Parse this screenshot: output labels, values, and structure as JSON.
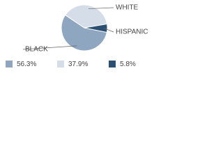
{
  "chart_data": {
    "type": "pie",
    "categories": [
      "BLACK",
      "WHITE",
      "HISPANIC"
    ],
    "values": [
      56.3,
      37.9,
      5.8
    ],
    "value_labels": [
      "56.3%",
      "37.9%",
      "5.8%"
    ],
    "colors": [
      "#8ea6bf",
      "#d5dee8",
      "#2b4f72"
    ]
  }
}
